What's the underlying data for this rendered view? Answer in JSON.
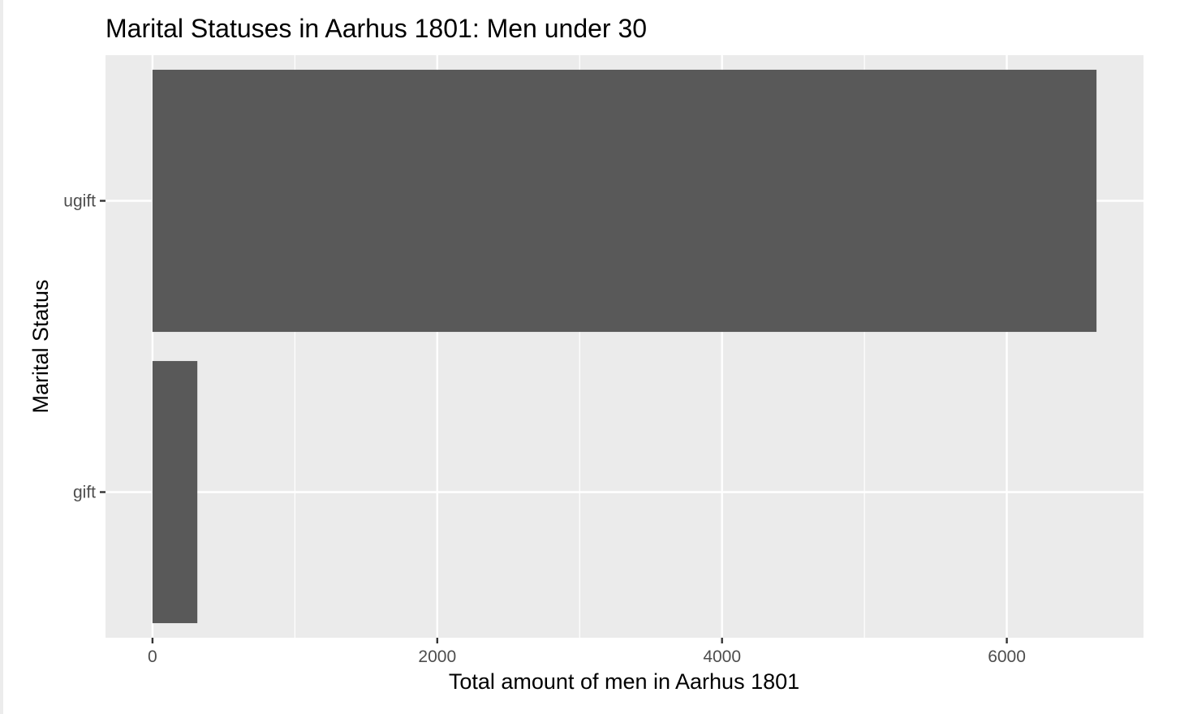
{
  "chart_data": {
    "type": "bar",
    "orientation": "horizontal",
    "title": "Marital Statuses in Aarhus 1801: Men under 30",
    "xlabel": "Total amount of men in Aarhus 1801",
    "ylabel": "Marital Status",
    "categories": [
      "ugift",
      "gift"
    ],
    "values": [
      6630,
      315
    ],
    "xlim": [
      -330,
      6960
    ],
    "xticks": [
      0,
      2000,
      4000,
      6000
    ],
    "xtick_labels": [
      "0",
      "2000",
      "4000",
      "6000"
    ],
    "minor_xticks": [
      1000,
      3000,
      5000
    ],
    "grid": true,
    "legend": "none",
    "colors": {
      "panel_background": "#ebebeb",
      "gridline": "#ffffff",
      "bar_fill": "#595959",
      "tick_mark": "#333333",
      "tick_text": "#4d4d4d",
      "text": "#000000"
    }
  }
}
